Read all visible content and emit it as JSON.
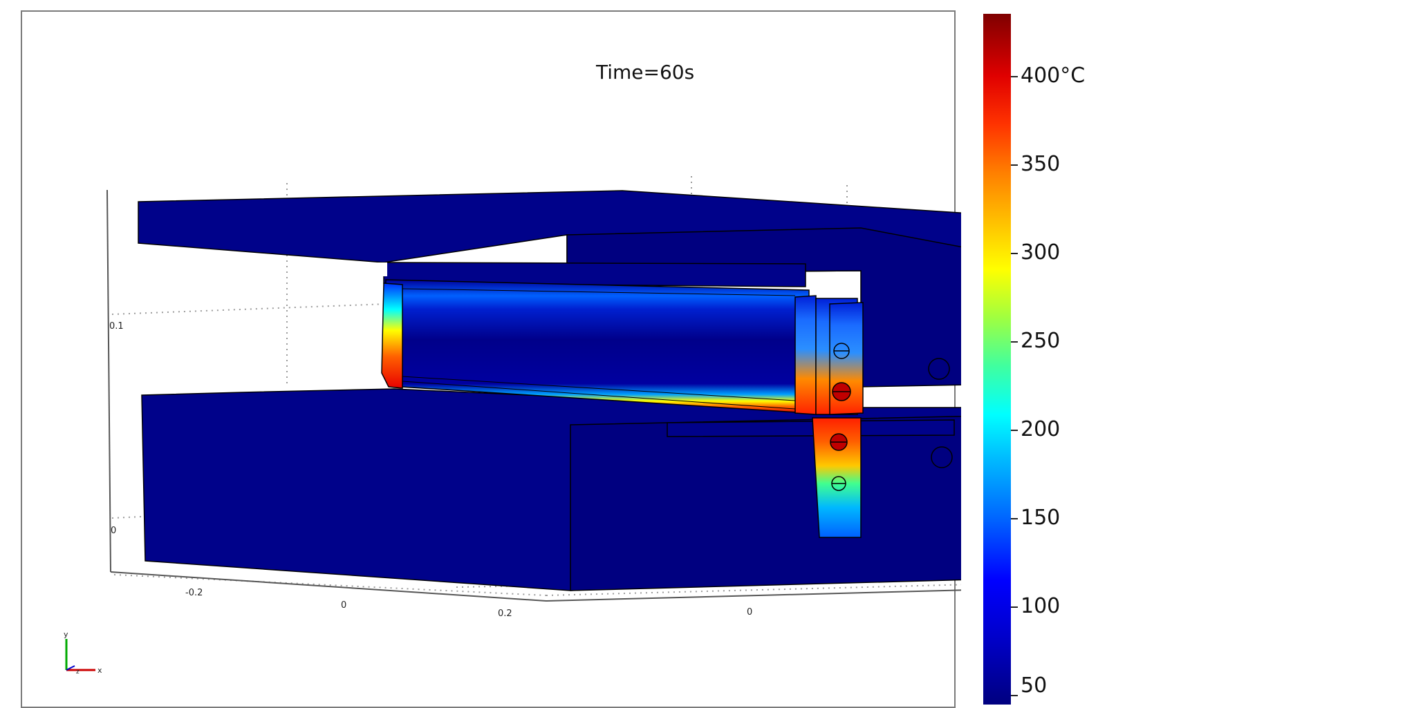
{
  "title": "Time=60s",
  "colorbar": {
    "labels": [
      "400°C",
      "350",
      "300",
      "250",
      "200",
      "150",
      "100",
      "50"
    ],
    "colors": [
      "#00007f",
      "#0000ff",
      "#00ffff",
      "#ffff00",
      "#ff7f00",
      "#e00000",
      "#7f0000"
    ]
  },
  "axes": {
    "y_ticks": [
      "0.1",
      "0"
    ],
    "x_ticks": [
      "-0.2",
      "0",
      "0.2"
    ],
    "z_ticks": [
      "0"
    ],
    "triad": {
      "y": "y",
      "x": "x",
      "z": "z"
    }
  },
  "colors": {
    "body": "#00028a",
    "body_dark": "#000170",
    "edge": "#000000"
  }
}
